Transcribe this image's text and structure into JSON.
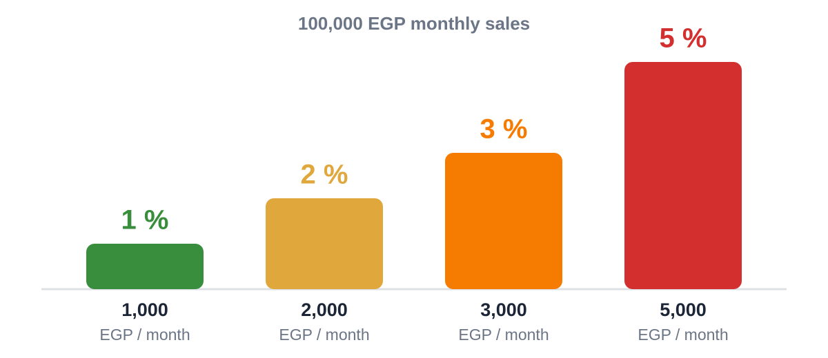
{
  "chart_data": {
    "type": "bar",
    "title": "100,000 EGP monthly sales",
    "categories": [
      "1,000",
      "2,000",
      "3,000",
      "5,000"
    ],
    "category_unit": "EGP / month",
    "values": [
      1,
      2,
      3,
      5
    ],
    "value_labels": [
      "1 %",
      "2 %",
      "3 %",
      "5 %"
    ],
    "colors": [
      "#388e3c",
      "#e0a83c",
      "#f57c00",
      "#d32f2f"
    ],
    "ylim": [
      0,
      5
    ]
  }
}
